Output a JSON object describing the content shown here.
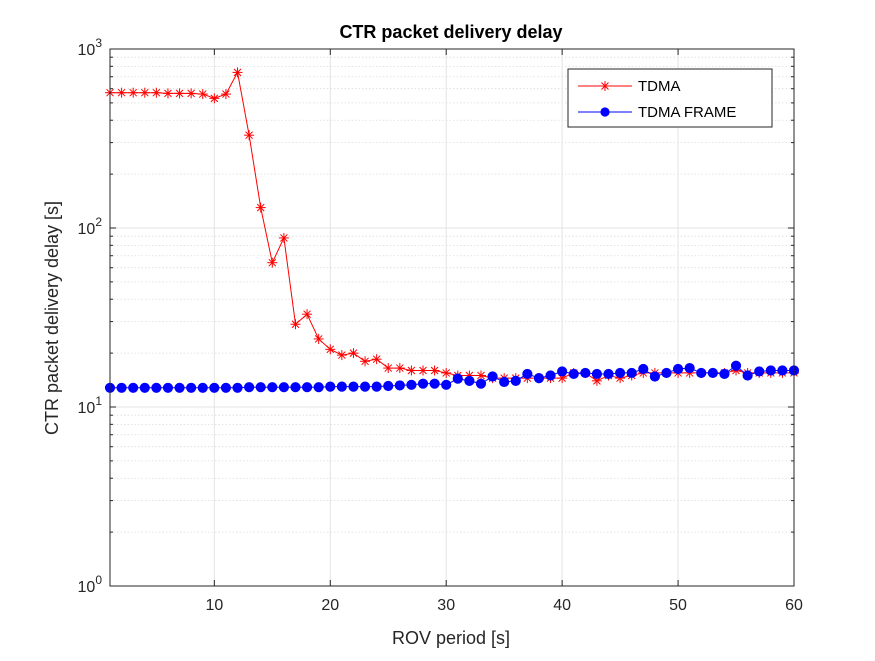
{
  "chart_data": {
    "type": "line",
    "title": "CTR packet delivery delay",
    "xlabel": "ROV period [s]",
    "ylabel": "CTR packet delivery delay [s]",
    "xlim": [
      1,
      60
    ],
    "ylim": [
      1,
      1000
    ],
    "yscale": "log",
    "grid": true,
    "legend_position": "top-right",
    "x_ticks": [
      10,
      20,
      30,
      40,
      50,
      60
    ],
    "x_tick_labels": [
      "10",
      "20",
      "30",
      "40",
      "50",
      "60"
    ],
    "y_ticks": [
      1,
      10,
      100,
      1000
    ],
    "y_tick_labels": [
      {
        "base": "10",
        "exp": "0"
      },
      {
        "base": "10",
        "exp": "1"
      },
      {
        "base": "10",
        "exp": "2"
      },
      {
        "base": "10",
        "exp": "3"
      }
    ],
    "x": [
      1,
      2,
      3,
      4,
      5,
      6,
      7,
      8,
      9,
      10,
      11,
      12,
      13,
      14,
      15,
      16,
      17,
      18,
      19,
      20,
      21,
      22,
      23,
      24,
      25,
      26,
      27,
      28,
      29,
      30,
      31,
      32,
      33,
      34,
      35,
      36,
      37,
      38,
      39,
      40,
      41,
      42,
      43,
      44,
      45,
      46,
      47,
      48,
      49,
      50,
      51,
      52,
      53,
      54,
      55,
      56,
      57,
      58,
      59,
      60
    ],
    "series": [
      {
        "name": "TDMA",
        "color": "#ff0000",
        "marker": "asterisk",
        "values": [
          570,
          570,
          570,
          570,
          570,
          565,
          565,
          565,
          560,
          530,
          560,
          740,
          330,
          130,
          64,
          88,
          29,
          33,
          24,
          21,
          19.5,
          20,
          18,
          18.5,
          16.5,
          16.5,
          16,
          16,
          16,
          15.5,
          15,
          15,
          15,
          14.5,
          14.5,
          14.5,
          14.5,
          14.5,
          14.5,
          14.5,
          15.5,
          15.5,
          14,
          15,
          14.5,
          15,
          15.5,
          15.5,
          15.5,
          15.5,
          15.5,
          15.5,
          15.5,
          15.5,
          16,
          15.5,
          15.5,
          15.5,
          15.5,
          15.5
        ]
      },
      {
        "name": "TDMA FRAME",
        "color": "#0000ff",
        "marker": "circle",
        "values": [
          12.8,
          12.8,
          12.8,
          12.8,
          12.8,
          12.8,
          12.8,
          12.8,
          12.8,
          12.8,
          12.8,
          12.8,
          12.9,
          12.9,
          12.9,
          12.9,
          12.9,
          12.9,
          12.9,
          13,
          13,
          13,
          13,
          13,
          13.1,
          13.2,
          13.3,
          13.5,
          13.5,
          13.3,
          14.4,
          14,
          13.5,
          14.8,
          13.8,
          14,
          15.3,
          14.5,
          15,
          15.8,
          15.3,
          15.5,
          15.3,
          15.3,
          15.5,
          15.5,
          16.3,
          14.8,
          15.5,
          16.3,
          16.5,
          15.5,
          15.5,
          15.3,
          17,
          15,
          15.8,
          16,
          16,
          16
        ]
      }
    ]
  }
}
